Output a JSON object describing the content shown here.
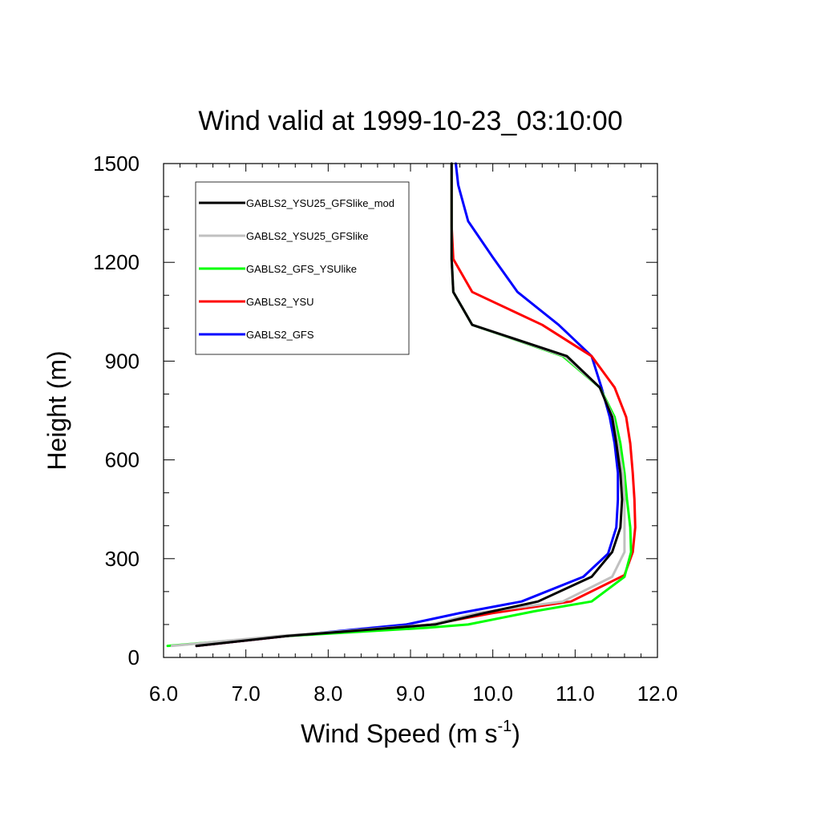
{
  "chart_data": {
    "type": "line",
    "title": "Wind valid at 1999-10-23_03:10:00",
    "xlabel": "Wind Speed (m s",
    "xlabel_sup": "-1",
    "xlabel_end": ")",
    "ylabel": "Height (m)",
    "xlim": [
      6.0,
      12.0
    ],
    "ylim": [
      0,
      1500
    ],
    "xticks": [
      "6.0",
      "7.0",
      "8.0",
      "9.0",
      "10.0",
      "11.0",
      "12.0"
    ],
    "yticks": [
      "0",
      "300",
      "600",
      "900",
      "1200",
      "1500"
    ],
    "legend_position": "top-left",
    "series": [
      {
        "name": "GABLS2_YSU25_GFSlike_mod",
        "color": "#000000",
        "points": [
          [
            6.4,
            35
          ],
          [
            7.5,
            65
          ],
          [
            9.3,
            100
          ],
          [
            9.9,
            135
          ],
          [
            10.55,
            170
          ],
          [
            11.2,
            245
          ],
          [
            11.45,
            320
          ],
          [
            11.55,
            395
          ],
          [
            11.57,
            480
          ],
          [
            11.55,
            560
          ],
          [
            11.5,
            650
          ],
          [
            11.45,
            730
          ],
          [
            11.3,
            820
          ],
          [
            10.9,
            915
          ],
          [
            9.75,
            1010
          ],
          [
            9.52,
            1110
          ],
          [
            9.5,
            1210
          ],
          [
            9.5,
            1310
          ],
          [
            9.5,
            1410
          ],
          [
            9.5,
            1500
          ]
        ]
      },
      {
        "name": "GABLS2_YSU25_GFSlike",
        "color": "#c0c0c0",
        "points": [
          [
            6.1,
            35
          ],
          [
            7.4,
            65
          ],
          [
            9.25,
            100
          ],
          [
            9.8,
            135
          ],
          [
            10.85,
            170
          ],
          [
            11.45,
            245
          ],
          [
            11.6,
            320
          ],
          [
            11.6,
            395
          ],
          [
            11.6,
            480
          ],
          [
            11.58,
            560
          ],
          [
            11.52,
            650
          ],
          [
            11.46,
            730
          ],
          [
            11.3,
            820
          ],
          [
            10.87,
            915
          ],
          [
            9.75,
            1010
          ],
          [
            9.52,
            1110
          ],
          [
            9.5,
            1210
          ],
          [
            9.5,
            1310
          ],
          [
            9.5,
            1410
          ],
          [
            9.5,
            1500
          ]
        ]
      },
      {
        "name": "GABLS2_GFS_YSUlike",
        "color": "#00ff00",
        "points": [
          [
            6.05,
            35
          ],
          [
            7.5,
            65
          ],
          [
            9.2,
            90
          ],
          [
            9.7,
            100
          ],
          [
            10.5,
            140
          ],
          [
            11.2,
            170
          ],
          [
            11.6,
            245
          ],
          [
            11.68,
            320
          ],
          [
            11.67,
            395
          ],
          [
            11.63,
            480
          ],
          [
            11.6,
            560
          ],
          [
            11.55,
            650
          ],
          [
            11.48,
            730
          ],
          [
            11.3,
            820
          ],
          [
            10.85,
            915
          ],
          [
            9.75,
            1010
          ],
          [
            9.52,
            1110
          ],
          [
            9.5,
            1210
          ],
          [
            9.5,
            1310
          ],
          [
            9.5,
            1410
          ],
          [
            9.5,
            1500
          ]
        ]
      },
      {
        "name": "GABLS2_YSU",
        "color": "#ff0000",
        "points": [
          [
            6.4,
            35
          ],
          [
            7.5,
            65
          ],
          [
            9.25,
            100
          ],
          [
            10.0,
            135
          ],
          [
            10.95,
            170
          ],
          [
            11.6,
            250
          ],
          [
            11.7,
            320
          ],
          [
            11.73,
            395
          ],
          [
            11.72,
            480
          ],
          [
            11.7,
            560
          ],
          [
            11.67,
            650
          ],
          [
            11.62,
            730
          ],
          [
            11.48,
            820
          ],
          [
            11.2,
            915
          ],
          [
            10.6,
            1010
          ],
          [
            9.75,
            1110
          ],
          [
            9.52,
            1210
          ],
          [
            9.5,
            1310
          ],
          [
            9.5,
            1410
          ],
          [
            9.5,
            1500
          ]
        ]
      },
      {
        "name": "GABLS2_GFS",
        "color": "#0000ff",
        "points": [
          [
            6.4,
            35
          ],
          [
            7.5,
            65
          ],
          [
            8.95,
            100
          ],
          [
            9.6,
            135
          ],
          [
            10.35,
            170
          ],
          [
            11.1,
            245
          ],
          [
            11.4,
            315
          ],
          [
            11.5,
            395
          ],
          [
            11.52,
            480
          ],
          [
            11.52,
            560
          ],
          [
            11.48,
            650
          ],
          [
            11.42,
            730
          ],
          [
            11.32,
            820
          ],
          [
            11.2,
            915
          ],
          [
            10.8,
            1010
          ],
          [
            10.3,
            1110
          ],
          [
            10.0,
            1215
          ],
          [
            9.7,
            1325
          ],
          [
            9.58,
            1435
          ],
          [
            9.55,
            1500
          ]
        ]
      }
    ]
  }
}
